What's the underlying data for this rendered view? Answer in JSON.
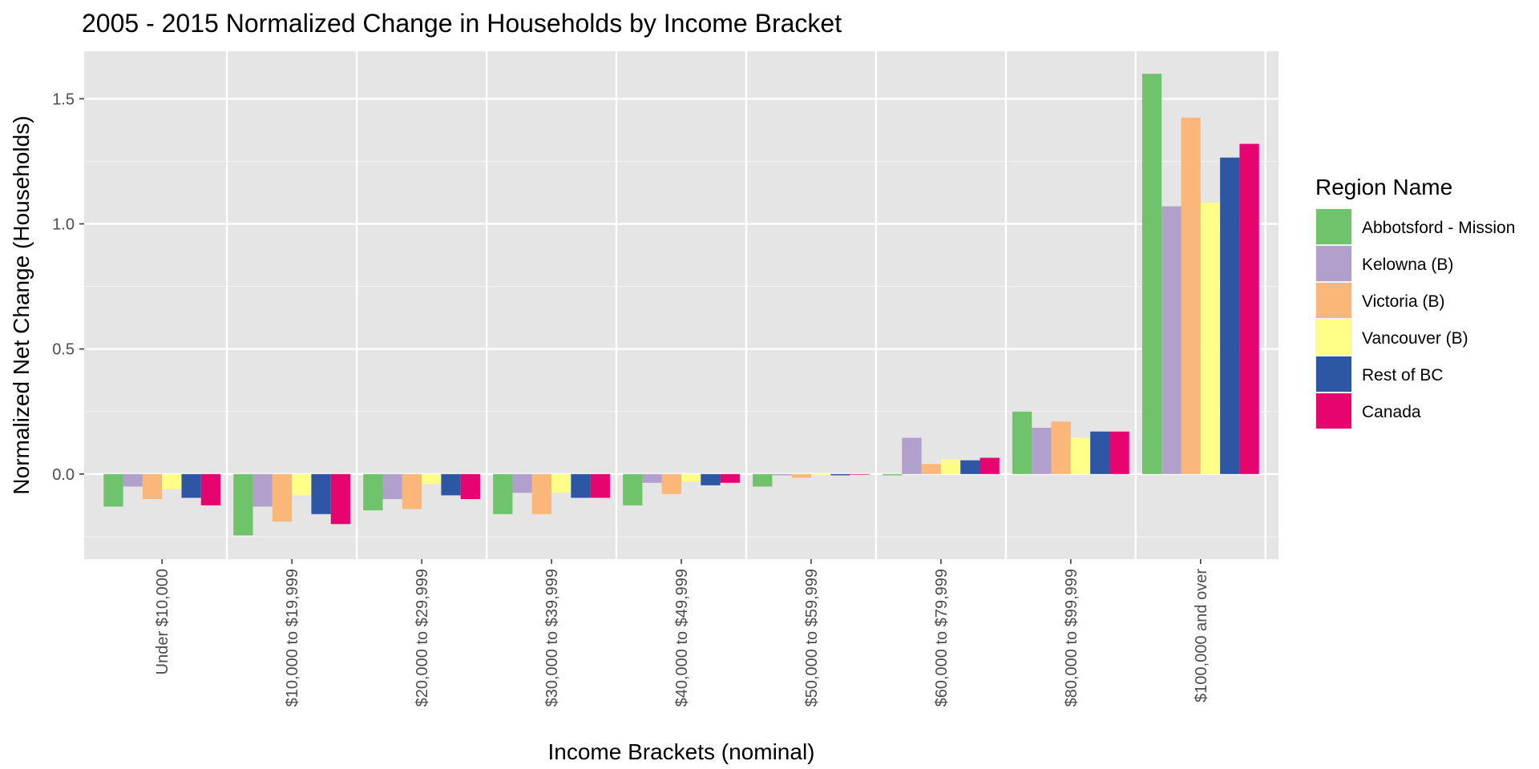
{
  "chart_data": {
    "type": "bar",
    "title": "2005 - 2015 Normalized Change in Households by Income Bracket",
    "xlabel": "Income Brackets (nominal)",
    "ylabel": "Normalized Net Change (Households)",
    "ylim": [
      -0.34,
      1.69
    ],
    "yticks": [
      0.0,
      0.5,
      1.0,
      1.5
    ],
    "ytick_labels": [
      "0.0",
      "0.5",
      "1.0",
      "1.5"
    ],
    "grid": true,
    "legend_title": "Region Name",
    "legend_position": "right",
    "categories": [
      "Under $10,000",
      "$10,000 to $19,999",
      "$20,000 to $29,999",
      "$30,000 to $39,999",
      "$40,000 to $49,999",
      "$50,000 to $59,999",
      "$60,000 to $79,999",
      "$80,000 to $99,999",
      "$100,000 and over"
    ],
    "series": [
      {
        "name": "Abbotsford - Mission",
        "color": "#6fc36a",
        "values": [
          -0.13,
          -0.245,
          -0.145,
          -0.16,
          -0.125,
          -0.05,
          -0.005,
          0.25,
          1.6
        ]
      },
      {
        "name": "Kelowna (B)",
        "color": "#b19fcc",
        "values": [
          -0.05,
          -0.13,
          -0.1,
          -0.075,
          -0.035,
          -0.005,
          0.145,
          0.185,
          1.07
        ]
      },
      {
        "name": "Victoria (B)",
        "color": "#fbb77a",
        "values": [
          -0.1,
          -0.19,
          -0.14,
          -0.16,
          -0.08,
          -0.015,
          0.04,
          0.21,
          1.425
        ]
      },
      {
        "name": "Vancouver (B)",
        "color": "#ffff88",
        "values": [
          -0.06,
          -0.085,
          -0.04,
          -0.075,
          -0.03,
          -0.005,
          0.06,
          0.145,
          1.085
        ]
      },
      {
        "name": "Rest of BC",
        "color": "#2d57a4",
        "values": [
          -0.095,
          -0.16,
          -0.085,
          -0.095,
          -0.045,
          -0.005,
          0.055,
          0.17,
          1.265
        ]
      },
      {
        "name": "Canada",
        "color": "#e8046f",
        "values": [
          -0.125,
          -0.2,
          -0.1,
          -0.095,
          -0.035,
          -0.002,
          0.065,
          0.17,
          1.32
        ]
      }
    ]
  }
}
